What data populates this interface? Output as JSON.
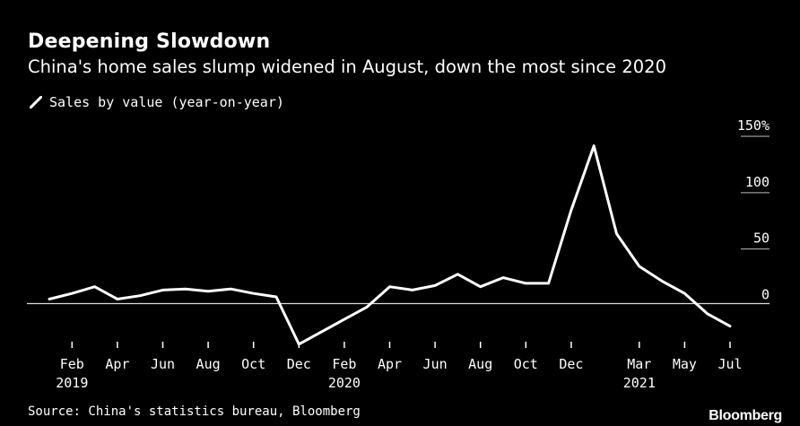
{
  "chart_data": {
    "type": "line",
    "title": "Deepening Slowdown",
    "subtitle": "China's home sales slump widened in August, down the most since 2020",
    "legend": "top-left",
    "grid": true,
    "ylim": [
      -33,
      150
    ],
    "yticks": [
      {
        "value": 150,
        "label": "150%"
      },
      {
        "value": 100,
        "label": "100"
      },
      {
        "value": 50,
        "label": "50"
      },
      {
        "value": 0,
        "label": "0"
      }
    ],
    "xticks": [
      {
        "date": "2019-02",
        "label": "Feb",
        "sublabel": "2019"
      },
      {
        "date": "2019-04",
        "label": "Apr",
        "sublabel": ""
      },
      {
        "date": "2019-06",
        "label": "Jun",
        "sublabel": ""
      },
      {
        "date": "2019-08",
        "label": "Aug",
        "sublabel": ""
      },
      {
        "date": "2019-10",
        "label": "Oct",
        "sublabel": ""
      },
      {
        "date": "2019-12",
        "label": "Dec",
        "sublabel": ""
      },
      {
        "date": "2020-02",
        "label": "Feb",
        "sublabel": "2020"
      },
      {
        "date": "2020-04",
        "label": "Apr",
        "sublabel": ""
      },
      {
        "date": "2020-06",
        "label": "Jun",
        "sublabel": ""
      },
      {
        "date": "2020-08",
        "label": "Aug",
        "sublabel": ""
      },
      {
        "date": "2020-10",
        "label": "Oct",
        "sublabel": ""
      },
      {
        "date": "2020-12",
        "label": "Dec",
        "sublabel": ""
      },
      {
        "date": "2021-03",
        "label": "Mar",
        "sublabel": "2021"
      },
      {
        "date": "2021-05",
        "label": "May",
        "sublabel": ""
      },
      {
        "date": "2021-07",
        "label": "Jul",
        "sublabel": ""
      }
    ],
    "series": [
      {
        "name": "Sales by value (year-on-year)",
        "color": "#ffffff",
        "x": [
          "2019-01",
          "2019-02",
          "2019-03",
          "2019-04",
          "2019-05",
          "2019-06",
          "2019-07",
          "2019-08",
          "2019-09",
          "2019-10",
          "2019-11",
          "2019-12",
          "2020-02",
          "2020-03",
          "2020-04",
          "2020-05",
          "2020-06",
          "2020-07",
          "2020-08",
          "2020-09",
          "2020-10",
          "2020-11",
          "2020-12",
          "2021-01",
          "2021-02",
          "2021-03",
          "2021-04",
          "2021-05",
          "2021-06",
          "2021-07",
          "2021-08"
        ],
        "y": [
          4,
          9,
          15,
          4,
          7,
          12,
          13,
          11,
          13,
          9,
          6,
          -36,
          -14,
          -3,
          15,
          12,
          16,
          26,
          15,
          23,
          18,
          18,
          83,
          140,
          62,
          33,
          20,
          9,
          -9,
          -20,
          null
        ],
        "note": ""
      }
    ]
  },
  "source": "Source: China's statistics bureau, Bloomberg",
  "logo": "Bloomberg"
}
